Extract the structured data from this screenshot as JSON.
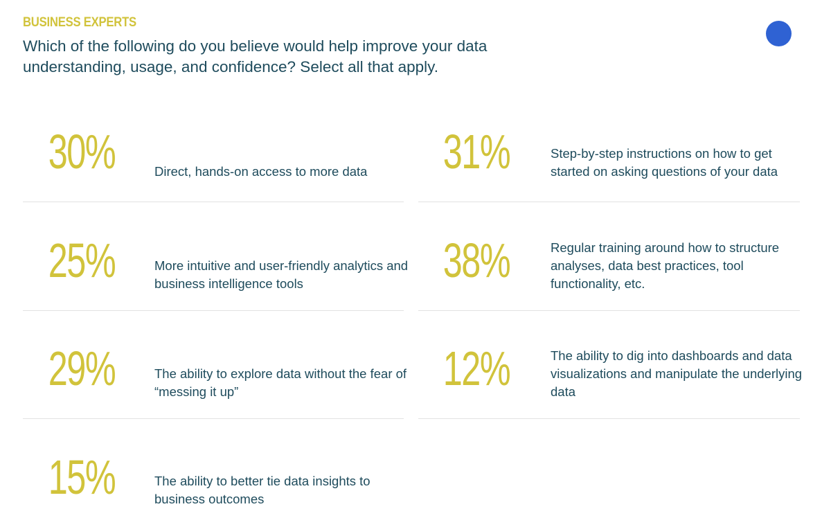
{
  "eyebrow": "BUSINESS EXPERTS",
  "headline": "Which of the following do you believe would help improve your data understanding, usage, and confidence? Select all that apply.",
  "colors": {
    "accent": "#d1c33b",
    "text": "#1e4b5c",
    "dot": "#2f62d3",
    "divider": "#e2e2e2"
  },
  "chart_data": {
    "type": "table",
    "title": "Which of the following do you believe would help improve your data understanding, usage, and confidence? Select all that apply.",
    "unit": "%",
    "items": [
      {
        "value": 30,
        "label": "Direct, hands-on access to more data"
      },
      {
        "value": 31,
        "label": "Step-by-step instructions on how to get started on asking questions of your data"
      },
      {
        "value": 25,
        "label": "More intuitive and user-friendly analytics and business intelligence tools"
      },
      {
        "value": 38,
        "label": "Regular training around how to structure analyses, data best practices, tool functionality, etc."
      },
      {
        "value": 29,
        "label": "The ability to explore data without the fear of “messing it up”"
      },
      {
        "value": 12,
        "label": "The ability to dig into dashboards and data visualizations and manipulate the underlying data"
      },
      {
        "value": 15,
        "label": "The ability to better tie data insights to business outcomes"
      }
    ]
  }
}
